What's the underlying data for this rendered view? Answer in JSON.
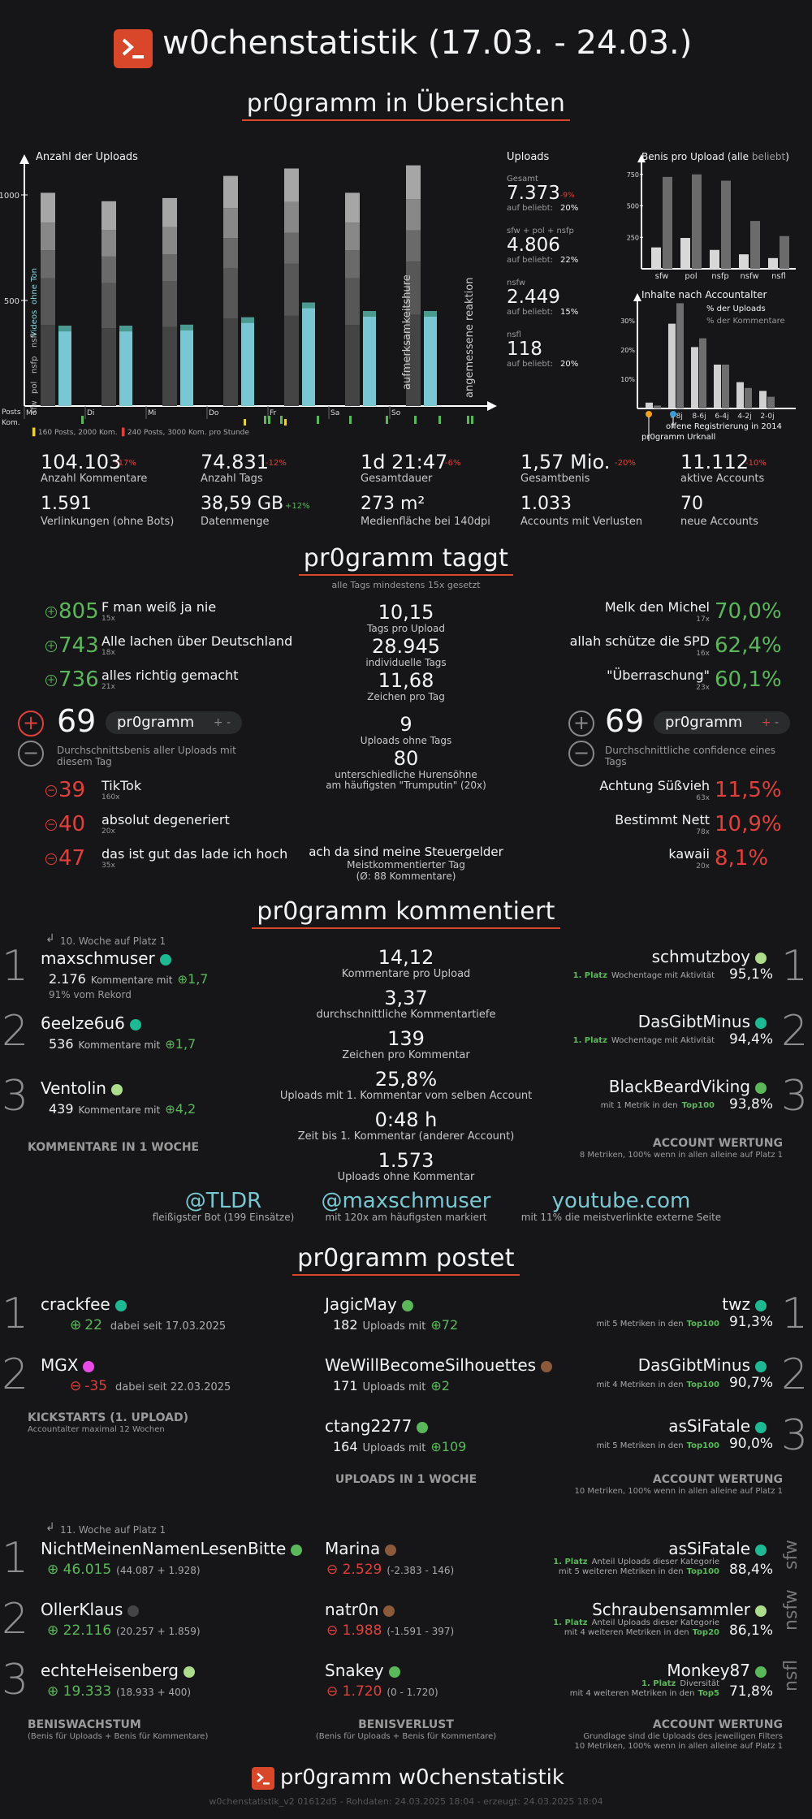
{
  "header": {
    "title": "w0chenstatistik (17.03. - 24.03.)"
  },
  "sections": {
    "uebersicht": "pr0gramm in Übersichten",
    "taggt": "pr0gramm taggt",
    "kommentiert": "pr0gramm kommentiert",
    "postet": "pr0gramm postet"
  },
  "uploads_chart": {
    "title": "Anzahl der Uploads",
    "yticks": [
      "1000",
      "500"
    ],
    "side_labels": [
      "Videos",
      "ohne Ton",
      "sfw",
      "pol",
      "nsfp",
      "nsfl"
    ],
    "days": [
      "Mo",
      "Di",
      "Mi",
      "Do",
      "Fr",
      "Sa",
      "So"
    ],
    "annotations": [
      "aufmerksamkeitshure",
      "angemessene reaktion"
    ],
    "row_labels": [
      "Posts",
      "Kom."
    ],
    "legend": [
      "160 Posts, 2000 Kom.",
      "240 Posts, 3000 Kom. pro Stunde"
    ],
    "series": [
      {
        "name": "Uploads",
        "values": [
          1010,
          970,
          985,
          1090,
          1125,
          1010,
          1140
        ]
      },
      {
        "name": "Kommentare",
        "values": [
          380,
          380,
          385,
          420,
          490,
          450,
          450
        ]
      }
    ]
  },
  "uploads_stats": {
    "title": "Uploads",
    "items": [
      {
        "label": "Gesamt",
        "value": "7.373",
        "delta": "-9%",
        "sub": "auf beliebt:",
        "pct": "20%"
      },
      {
        "label": "sfw + pol + nsfp",
        "value": "4.806",
        "sub": "auf beliebt:",
        "pct": "22%"
      },
      {
        "label": "nsfw",
        "value": "2.449",
        "sub": "auf beliebt:",
        "pct": "15%"
      },
      {
        "label": "nsfl",
        "value": "118",
        "sub": "auf beliebt:",
        "pct": "20%"
      }
    ]
  },
  "benis_chart": {
    "title": "Benis pro Upload (alle",
    "title_b": "beliebt",
    "title_c": ")",
    "yticks": [
      "750",
      "500",
      "250"
    ],
    "categories": [
      "sfw",
      "pol",
      "nsfp",
      "nsfw",
      "nsfl"
    ],
    "series": [
      {
        "name": "alle",
        "values": [
          170,
          245,
          150,
          115,
          85
        ]
      },
      {
        "name": "beliebt",
        "values": [
          730,
          750,
          700,
          380,
          260
        ]
      }
    ],
    "colors": {
      "alle": "#d8d8d8",
      "beliebt": "#6b6b6b"
    }
  },
  "age_chart": {
    "title": "Inhalte nach Accountalter",
    "legend": [
      "% der Uploads",
      "% der Kommentare"
    ],
    "yticks": [
      "30%",
      "20%",
      "10%"
    ],
    "categories": [
      ">8j",
      "8-6j",
      "6-4j",
      "4-2j",
      "2-0j"
    ],
    "notes": [
      "offene Registrierung in 2014",
      "pr0gramm Urknall"
    ]
  },
  "stats": [
    {
      "value": "104.103",
      "delta": "-17%",
      "label": "Anzahl Kommentare"
    },
    {
      "value": "74.831",
      "delta": "-12%",
      "label": "Anzahl Tags"
    },
    {
      "value": "1d 21:47",
      "delta": "-6%",
      "label": "Gesamtdauer"
    },
    {
      "value": "1,57 Mio.",
      "delta": "-20%",
      "label": "Gesamtbenis"
    },
    {
      "value": "11.112",
      "delta": "-10%",
      "label": "aktive Accounts"
    },
    {
      "value": "1.591",
      "delta": "",
      "label": "Verlinkungen (ohne Bots)"
    },
    {
      "value": "38,59 GB",
      "delta": "+12%",
      "label": "Datenmenge"
    },
    {
      "value": "273 m²",
      "delta": "",
      "label": "Medienfläche bei 140dpi"
    },
    {
      "value": "1.033",
      "delta": "",
      "label": "Accounts mit Verlusten"
    },
    {
      "value": "70",
      "delta": "",
      "label": "neue Accounts"
    }
  ],
  "taggt": {
    "subtitle": "alle Tags mindestens 15x gesetzt",
    "top": [
      {
        "score": "805",
        "tag": "F man weiß ja nie",
        "count": "15x"
      },
      {
        "score": "743",
        "tag": "Alle lachen über Deutschland",
        "count": "18x"
      },
      {
        "score": "736",
        "tag": "alles richtig gemacht",
        "count": "21x"
      }
    ],
    "bottom": [
      {
        "score": "39",
        "tag": "TikTok",
        "count": "160x"
      },
      {
        "score": "40",
        "tag": "absolut degeneriert",
        "count": "20x"
      },
      {
        "score": "47",
        "tag": "das ist gut das lade ich hoch",
        "count": "35x"
      }
    ],
    "conf_top": [
      {
        "pct": "70,0%",
        "tag": "Melk den Michel",
        "count": "17x"
      },
      {
        "pct": "62,4%",
        "tag": "allah schütze die SPD",
        "count": "16x"
      },
      {
        "pct": "60,1%",
        "tag": "\"Überraschung\"",
        "count": "23x"
      }
    ],
    "conf_bottom": [
      {
        "pct": "11,5%",
        "tag": "Achtung Süßvieh",
        "count": "63x"
      },
      {
        "pct": "10,9%",
        "tag": "Bestimmt Nett",
        "count": "78x"
      },
      {
        "pct": "8,1%",
        "tag": "kawaii",
        "count": "20x"
      }
    ],
    "left_big": "69",
    "left_pill": "pr0gramm",
    "left_desc": "Durchschnittsbenis aller Uploads mit diesem Tag",
    "right_big": "69",
    "right_pill": "pr0gramm",
    "right_desc": "Durchschnittliche confidence eines Tags",
    "mid": [
      {
        "v": "10,15",
        "l": "Tags pro Upload"
      },
      {
        "v": "28.945",
        "l": "individuelle Tags"
      },
      {
        "v": "11,68",
        "l": "Zeichen pro Tag"
      },
      {
        "v": "9",
        "l": "Uploads ohne Tags"
      },
      {
        "v": "80",
        "l": "unterschiedliche Hurensöhne",
        "l2": "am häufigsten \"Trumputin\" (20x)"
      }
    ],
    "meist": {
      "v": "ach da sind meine Steuergelder",
      "l": "Meistkommentierter Tag",
      "l2": "(Ø: 88 Kommentare)"
    }
  },
  "kommentiert": {
    "streak": "10. Woche auf Platz 1",
    "left": [
      {
        "rank": "1",
        "name": "maxschmuser",
        "color": "#1db992",
        "count": "2.176",
        "text": "Kommentare mit",
        "benis": "1,7",
        "extra": "91% vom Rekord"
      },
      {
        "rank": "2",
        "name": "6eelze6u6",
        "color": "#1db992",
        "count": "536",
        "text": "Kommentare mit",
        "benis": "1,7"
      },
      {
        "rank": "3",
        "name": "Ventolin",
        "color": "#addc8d",
        "count": "439",
        "text": "Kommentare mit",
        "benis": "4,2"
      }
    ],
    "left_caption": "KOMMENTARE IN 1 WOCHE",
    "mid": [
      {
        "v": "14,12",
        "l": "Kommentare pro Upload"
      },
      {
        "v": "3,37",
        "l": "durchschnittliche Kommentartiefe"
      },
      {
        "v": "139",
        "l": "Zeichen pro Kommentar"
      },
      {
        "v": "25,8%",
        "l": "Uploads mit 1. Kommentar vom selben Account"
      },
      {
        "v": "0:48 h",
        "l": "Zeit bis 1. Kommentar (anderer Account)"
      },
      {
        "v": "1.573",
        "l": "Uploads ohne Kommentar"
      }
    ],
    "right": [
      {
        "rank": "1",
        "name": "schmutzboy",
        "color": "#addc8d",
        "badge": "1. Platz",
        "desc": "Wochentage mit Aktivität",
        "pct": "95,1%"
      },
      {
        "rank": "2",
        "name": "DasGibtMinus",
        "color": "#1db992",
        "badge": "1. Platz",
        "desc": "Wochentage mit Aktivität",
        "pct": "94,4%"
      },
      {
        "rank": "3",
        "name": "BlackBeardViking",
        "color": "#5bb85a",
        "badge": "Top100",
        "desc": "mit 1 Metrik in den",
        "pct": "93,8%"
      }
    ],
    "right_caption": "ACCOUNT WERTUNG",
    "right_sub": "8 Metriken, 100% wenn in allen alleine auf Platz 1",
    "links": [
      {
        "v": "@TLDR",
        "l": "fleißigster Bot (199 Einsätze)"
      },
      {
        "v": "@maxschmuser",
        "l": "mit 120x am häufigsten markiert"
      },
      {
        "v": "youtube.com",
        "l": "mit 11% die meistverlinkte externe Seite"
      }
    ]
  },
  "postet": {
    "kick": [
      {
        "rank": "1",
        "name": "crackfee",
        "color": "#1db992",
        "sign": "+",
        "benis": "22",
        "since": "dabei seit 17.03.2025"
      },
      {
        "rank": "2",
        "name": "MGX",
        "color": "#e94be8",
        "sign": "-",
        "benis": "-35",
        "since": "dabei seit 22.03.2025"
      }
    ],
    "kick_caption": "KICKSTARTS (1. UPLOAD)",
    "kick_sub": "Accountalter maximal 12 Wochen",
    "up": [
      {
        "name": "JagicMay",
        "color": "#5bb85a",
        "count": "182",
        "benis": "72"
      },
      {
        "name": "WeWillBecomeSilhouettes",
        "color": "#8a5a3a",
        "count": "171",
        "benis": "2"
      },
      {
        "name": "ctang2277",
        "color": "#5bb85a",
        "count": "164",
        "benis": "109"
      }
    ],
    "up_text": "Uploads mit",
    "up_caption": "UPLOADS IN 1 WOCHE",
    "right": [
      {
        "rank": "1",
        "name": "twz",
        "color": "#1db992",
        "desc": "mit 5 Metriken in den",
        "badge": "Top100",
        "pct": "91,3%"
      },
      {
        "rank": "2",
        "name": "DasGibtMinus",
        "color": "#1db992",
        "desc": "mit 4 Metriken in den",
        "badge": "Top100",
        "pct": "90,7%"
      },
      {
        "rank": "3",
        "name": "asSiFatale",
        "color": "#1db992",
        "desc": "mit 5 Metriken in den",
        "badge": "Top100",
        "pct": "90,0%"
      }
    ],
    "right_caption": "ACCOUNT WERTUNG",
    "right_sub": "10 Metriken, 100% wenn in allen alleine auf Platz 1",
    "streak": "11. Woche auf Platz 1",
    "gain": [
      {
        "rank": "1",
        "name": "NichtMeinenNamenLesenBitte",
        "color": "#5bb85a",
        "v": "46.015",
        "d": "(44.087 + 1.928)"
      },
      {
        "rank": "2",
        "name": "OllerKlaus",
        "color": "#444444",
        "v": "22.116",
        "d": "(20.257 + 1.859)"
      },
      {
        "rank": "3",
        "name": "echteHeisenberg",
        "color": "#addc8d",
        "v": "19.333",
        "d": "(18.933 + 400)"
      }
    ],
    "loss": [
      {
        "name": "Marina",
        "color": "#8a5a3a",
        "v": "2.529",
        "d": "(-2.383 - 146)"
      },
      {
        "name": "natr0n",
        "color": "#8a5a3a",
        "v": "1.988",
        "d": "(-1.591 - 397)"
      },
      {
        "name": "Snakey",
        "color": "#5bb85a",
        "v": "1.720",
        "d": "(0 - 1.720)"
      }
    ],
    "cat": [
      {
        "name": "asSiFatale",
        "color": "#1db992",
        "b1": "1. Platz",
        "t1": "Anteil Uploads dieser Kategorie",
        "t2": "mit 5 weiteren Metriken in den",
        "b2": "Top100",
        "pct": "88,4%",
        "k": "sfw"
      },
      {
        "name": "Schraubensammler",
        "color": "#addc8d",
        "b1": "1. Platz",
        "t1": "Anteil Uploads dieser Kategorie",
        "t2": "mit 4 weiteren Metriken in den",
        "b2": "Top20",
        "pct": "86,1%",
        "k": "nsfw"
      },
      {
        "name": "Monkey87",
        "color": "#5bb85a",
        "b1": "1. Platz",
        "t1": "Diversität",
        "t2": "mit 4 weiteren Metriken in den",
        "b2": "Top5",
        "pct": "71,8%",
        "k": "nsfl"
      }
    ],
    "cap_gain": "BENISWACHSTUM",
    "cap_gain_sub": "(Benis für Uploads + Benis für Kommentare)",
    "cap_loss": "BENISVERLUST",
    "cap_loss_sub": "(Benis für Uploads + Benis für Kommentare)",
    "cap_right": "ACCOUNT WERTUNG",
    "cap_right_sub": "Grundlage sind die Uploads des jeweiligen Filters",
    "cap_right_sub2": "10 Metriken, 100% wenn in allen alleine auf Platz 1"
  },
  "footer": {
    "title": "pr0gramm w0chenstatistik",
    "meta": "w0chenstatistik_v2 01612d5 - Rohdaten: 24.03.2025 18:04 - erzeugt: 24.03.2025 18:04"
  },
  "colors": {
    "accent": "#d9472b",
    "green": "#5bb85a",
    "red": "#e0403b",
    "cyan": "#79c7d2"
  }
}
